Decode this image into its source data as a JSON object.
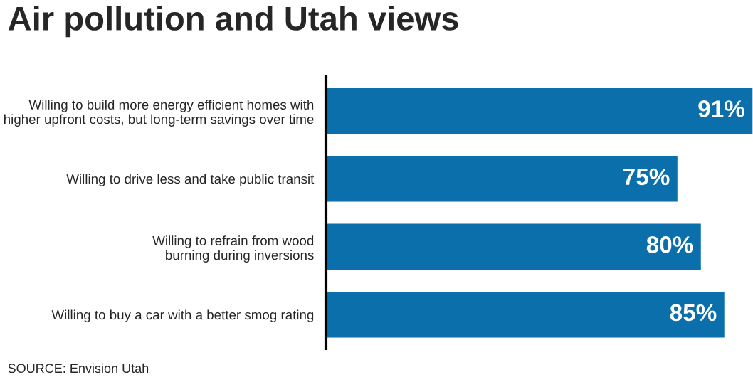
{
  "chart_data": {
    "type": "bar",
    "orientation": "horizontal",
    "title": "Air pollution and Utah views",
    "categories": [
      "Willing to build more energy efficient homes with\nhigher upfront costs, but long-term savings over time",
      "Willing to drive less and take public transit",
      "Willing to refrain from wood\nburning during inversions",
      "Willing to buy a car with a better smog rating"
    ],
    "values": [
      91,
      75,
      80,
      85
    ],
    "color": "#0a6fab",
    "value_labels": [
      "91%",
      "75%",
      "80%",
      "85%"
    ],
    "annotations": [
      "SOURCE: Envision Utah"
    ],
    "grid": false,
    "legend": false
  }
}
